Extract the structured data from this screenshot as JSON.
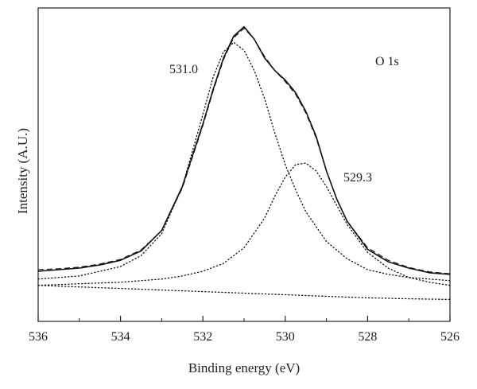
{
  "chart_data": {
    "type": "line",
    "title": "",
    "xlabel": "Binding energy (eV)",
    "ylabel": "Intensity (A.U.)",
    "xlim": [
      536,
      526
    ],
    "x_reversed": true,
    "xticks": [
      536,
      534,
      532,
      530,
      528,
      526
    ],
    "xtick_labels": [
      "536",
      "534",
      "532",
      "530",
      "528",
      "526"
    ],
    "ylim": [
      0,
      1
    ],
    "y_tick_labels_shown": false,
    "grid": false,
    "legend": "none",
    "annotations": [
      {
        "text": "O 1s",
        "x": 527.2,
        "y": 0.96
      },
      {
        "text": "531.0",
        "x": 532.5,
        "y": 0.91
      },
      {
        "text": "529.3",
        "x": 528.7,
        "y": 0.52
      }
    ],
    "series": [
      {
        "style": "solid",
        "x": [
          536,
          535.5,
          535,
          534.5,
          534,
          533.5,
          533,
          532.5,
          532,
          531.75,
          531.5,
          531.25,
          531.0,
          530.75,
          530.5,
          530.25,
          530.0,
          529.75,
          529.5,
          529.25,
          529.0,
          528.75,
          528.5,
          528.0,
          527.5,
          527.0,
          526.5,
          526
        ],
        "y": [
          0.16,
          0.165,
          0.17,
          0.18,
          0.195,
          0.225,
          0.29,
          0.43,
          0.63,
          0.74,
          0.84,
          0.91,
          0.94,
          0.9,
          0.84,
          0.8,
          0.77,
          0.73,
          0.67,
          0.59,
          0.48,
          0.39,
          0.32,
          0.23,
          0.19,
          0.17,
          0.155,
          0.15
        ]
      },
      {
        "style": "dashed",
        "x": [
          536,
          535.5,
          535,
          534.5,
          534,
          533.5,
          533,
          532.5,
          532,
          531.75,
          531.5,
          531.25,
          531.0,
          530.75,
          530.5,
          530.25,
          530.0,
          529.75,
          529.5,
          529.25,
          529.0,
          528.75,
          528.5,
          528.0,
          527.5,
          527.0,
          526.5,
          526
        ],
        "y": [
          0.165,
          0.168,
          0.173,
          0.183,
          0.198,
          0.228,
          0.29,
          0.425,
          0.625,
          0.735,
          0.835,
          0.905,
          0.935,
          0.9,
          0.845,
          0.8,
          0.765,
          0.725,
          0.665,
          0.585,
          0.48,
          0.39,
          0.32,
          0.235,
          0.195,
          0.172,
          0.158,
          0.152
        ]
      },
      {
        "style": "dotted",
        "x": [
          536,
          535,
          534,
          533.5,
          533,
          532.5,
          532,
          531.75,
          531.5,
          531.25,
          531.0,
          530.75,
          530.5,
          530.25,
          530.0,
          529.75,
          529.5,
          529.0,
          528.5,
          528.0,
          527.5,
          527.0,
          526.5,
          526
        ],
        "y": [
          0.135,
          0.145,
          0.175,
          0.21,
          0.28,
          0.43,
          0.66,
          0.78,
          0.86,
          0.89,
          0.865,
          0.8,
          0.71,
          0.6,
          0.5,
          0.42,
          0.35,
          0.255,
          0.2,
          0.165,
          0.15,
          0.14,
          0.135,
          0.13
        ]
      },
      {
        "style": "dotted",
        "x": [
          536,
          535,
          534,
          533,
          532.5,
          532,
          531.5,
          531.0,
          530.5,
          530.25,
          530.0,
          529.75,
          529.5,
          529.25,
          529.0,
          528.75,
          528.5,
          528.0,
          527.5,
          527.0,
          526.5,
          526
        ],
        "y": [
          0.115,
          0.12,
          0.125,
          0.135,
          0.145,
          0.16,
          0.185,
          0.235,
          0.33,
          0.4,
          0.46,
          0.5,
          0.505,
          0.48,
          0.43,
          0.37,
          0.31,
          0.22,
          0.17,
          0.14,
          0.125,
          0.115
        ]
      },
      {
        "style": "dotted",
        "x": [
          536,
          535,
          534,
          533,
          532,
          531,
          530,
          529,
          528,
          527,
          526
        ],
        "y": [
          0.115,
          0.11,
          0.105,
          0.1,
          0.095,
          0.09,
          0.085,
          0.08,
          0.075,
          0.072,
          0.07
        ]
      }
    ]
  }
}
